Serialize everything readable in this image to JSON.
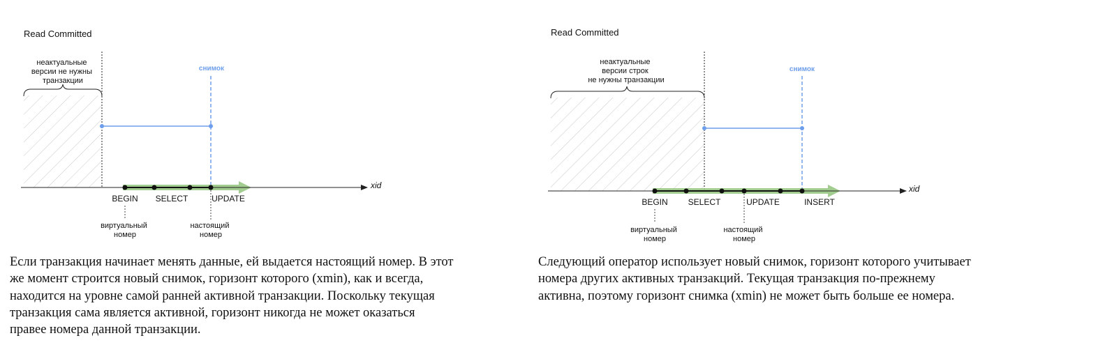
{
  "diagrams": {
    "left": {
      "title": "Read Committed",
      "brace_label": [
        "неактуальные",
        "версии не нужны",
        "транзакции"
      ],
      "snapshot_label": "снимок",
      "axis_label": "xid",
      "events": [
        "BEGIN",
        "SELECT",
        "UPDATE"
      ],
      "notes": [
        [
          "виртуальный",
          "номер"
        ],
        [
          "настоящий",
          "номер"
        ]
      ],
      "caption": "Если транзакция начинает менять данные, ей выдается настоящий номер. В этот\nже момент строится новый снимок, горизонт которого (xmin), как и всегда,\nнаходится на уровне самой ранней активной транзакции. Поскольку текущая\nтранзакция сама является активной, горизонт никогда не может оказаться\nправее номера данной транзакции."
    },
    "right": {
      "title": "Read Committed",
      "brace_label": [
        "неактуальные",
        "версии строк",
        "не нужны транзакции"
      ],
      "snapshot_label": "снимок",
      "axis_label": "xid",
      "events": [
        "BEGIN",
        "SELECT",
        "UPDATE",
        "INSERT"
      ],
      "notes": [
        [
          "виртуальный",
          "номер"
        ],
        [
          "настоящий",
          "номер"
        ]
      ],
      "caption": "Следующий оператор использует новый снимок, горизонт которого учитывает\nномера других активных транзакций. Текущая транзакция по-прежнему\nактивна, поэтому горизонт снимка (xmin) не может быть больше ее номера."
    }
  },
  "colors": {
    "axis": "#222222",
    "hatch": "#c8c8c8",
    "snapshot": "#6d9eeb",
    "transaction": "#93c47d",
    "text": "#111111"
  }
}
